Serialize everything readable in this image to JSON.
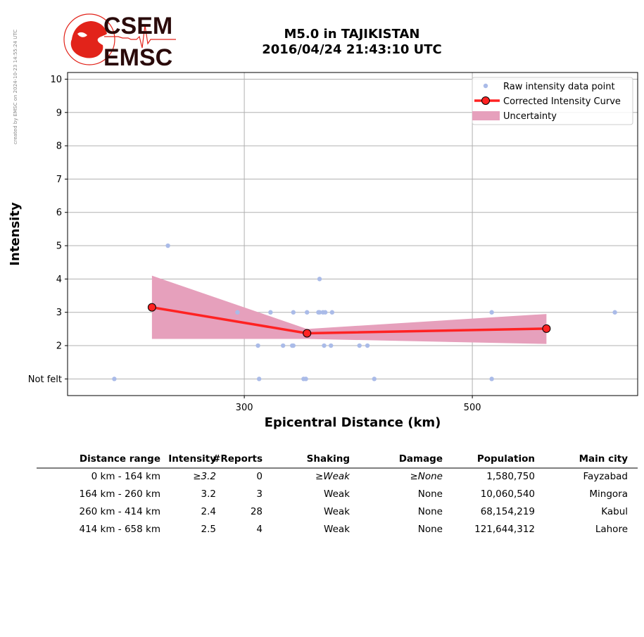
{
  "credit": "created by EMSC on 2024-10-23 14:55:24 UTC",
  "logo": {
    "line1": "CSEM",
    "line2": "EMSC",
    "red": "#e2231a",
    "dark": "#2a0a0a"
  },
  "title": {
    "line1": "M5.0 in TAJIKISTAN",
    "line2": "2016/04/24 21:43:10 UTC"
  },
  "chart_data": {
    "type": "scatter",
    "xlabel": "Epicentral Distance (km)",
    "ylabel": "Intensity",
    "xlim": [
      145,
      645
    ],
    "ylim": [
      0.5,
      10.2
    ],
    "x_ticks": [
      300,
      500
    ],
    "y_ticks": [
      {
        "v": 1,
        "label": "Not felt"
      },
      {
        "v": 2,
        "label": "2"
      },
      {
        "v": 3,
        "label": "3"
      },
      {
        "v": 4,
        "label": "4"
      },
      {
        "v": 5,
        "label": "5"
      },
      {
        "v": 6,
        "label": "6"
      },
      {
        "v": 7,
        "label": "7"
      },
      {
        "v": 8,
        "label": "8"
      },
      {
        "v": 9,
        "label": "9"
      },
      {
        "v": 10,
        "label": "10"
      }
    ],
    "grid": true,
    "legend_position": "top-right",
    "legend": [
      "Raw intensity data point",
      "Corrected Intensity Curve",
      "Uncertainty"
    ],
    "colors": {
      "raw": "#aabbe8",
      "curve": "#ff2222",
      "band": "#e6a0bc"
    },
    "raw_points": [
      {
        "x": 186,
        "y": 1
      },
      {
        "x": 233,
        "y": 5
      },
      {
        "x": 294,
        "y": 3
      },
      {
        "x": 312,
        "y": 2
      },
      {
        "x": 313,
        "y": 1
      },
      {
        "x": 323,
        "y": 3
      },
      {
        "x": 334,
        "y": 2
      },
      {
        "x": 342,
        "y": 2
      },
      {
        "x": 343,
        "y": 2
      },
      {
        "x": 343,
        "y": 3
      },
      {
        "x": 352,
        "y": 1
      },
      {
        "x": 354,
        "y": 1
      },
      {
        "x": 355,
        "y": 3
      },
      {
        "x": 365,
        "y": 3
      },
      {
        "x": 366,
        "y": 3
      },
      {
        "x": 366,
        "y": 4
      },
      {
        "x": 369,
        "y": 3
      },
      {
        "x": 370,
        "y": 2
      },
      {
        "x": 371,
        "y": 3
      },
      {
        "x": 376,
        "y": 2
      },
      {
        "x": 377,
        "y": 3
      },
      {
        "x": 401,
        "y": 2
      },
      {
        "x": 408,
        "y": 2
      },
      {
        "x": 414,
        "y": 1
      },
      {
        "x": 517,
        "y": 3
      },
      {
        "x": 517,
        "y": 1
      },
      {
        "x": 625,
        "y": 3
      }
    ],
    "curve": [
      {
        "x": 219,
        "y": 3.15
      },
      {
        "x": 355,
        "y": 2.37
      },
      {
        "x": 565,
        "y": 2.51
      }
    ],
    "band": [
      {
        "x": 219,
        "lo": 2.2,
        "hi": 4.1
      },
      {
        "x": 355,
        "lo": 2.2,
        "hi": 2.5
      },
      {
        "x": 565,
        "lo": 2.05,
        "hi": 2.95
      }
    ]
  },
  "table": {
    "headers": [
      "Distance range",
      "Intensity",
      "#Reports",
      "Shaking",
      "Damage",
      "Population",
      "Main city"
    ],
    "rows": [
      [
        "0 km -  164 km",
        "≥3.2",
        "0",
        "≥Weak",
        "≥None",
        "1,580,750",
        "Fayzabad"
      ],
      [
        "164 km -  260 km",
        "3.2",
        "3",
        "Weak",
        "None",
        "10,060,540",
        "Mingora"
      ],
      [
        "260 km -  414 km",
        "2.4",
        "28",
        "Weak",
        "None",
        "68,154,219",
        "Kabul"
      ],
      [
        "414 km -  658 km",
        "2.5",
        "4",
        "Weak",
        "None",
        "121,644,312",
        "Lahore"
      ]
    ],
    "italic_row": 0
  }
}
